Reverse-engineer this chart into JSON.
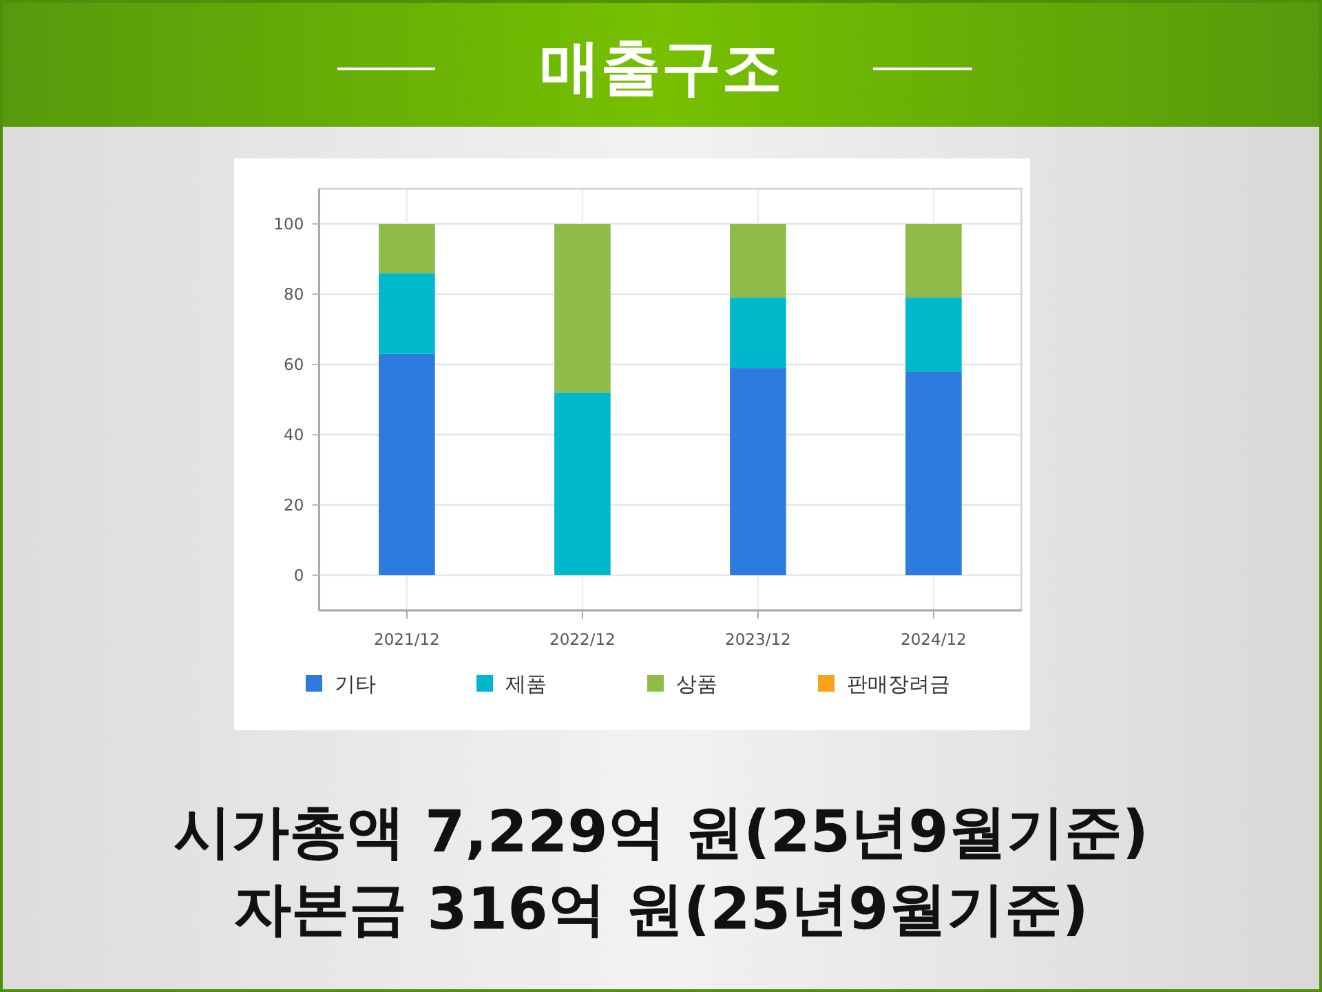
{
  "chart_data": {
    "type": "bar",
    "stacked": true,
    "title": "매출구조",
    "categories": [
      "2021/12",
      "2022/12",
      "2023/12",
      "2024/12"
    ],
    "series": [
      {
        "name": "기타",
        "color": "#2e7be0",
        "values": [
          63,
          null,
          59,
          58
        ]
      },
      {
        "name": "제품",
        "color": "#00b8cc",
        "values": [
          23,
          52,
          20,
          21
        ]
      },
      {
        "name": "상품",
        "color": "#8fbb48",
        "values": [
          14,
          48,
          21,
          21
        ]
      },
      {
        "name": "판매장려금",
        "color": "#f7a21b",
        "values": [
          null,
          null,
          null,
          null
        ]
      }
    ],
    "ylim": [
      -10,
      110
    ],
    "yticks": [
      0,
      20,
      40,
      60,
      80,
      100
    ],
    "grid": true,
    "legend": "bottom",
    "annotations": [
      "시가총액 7,229억 원(25년9월기준)",
      "자본금 316억 원(25년9월기준)"
    ]
  }
}
